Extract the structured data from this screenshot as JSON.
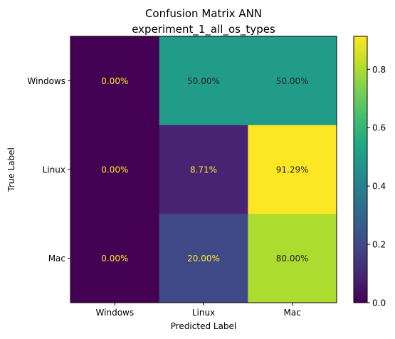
{
  "chart_data": {
    "type": "heatmap",
    "title": "Confusion Matrix ANN",
    "subtitle": "experiment_1_all_os_types",
    "xlabel": "Predicted Label",
    "ylabel": "True Label",
    "row_labels": [
      "Windows",
      "Linux",
      "Mac"
    ],
    "col_labels": [
      "Windows",
      "Linux",
      "Mac"
    ],
    "values": [
      [
        0.0,
        0.5,
        0.5
      ],
      [
        0.0,
        0.0871,
        0.9129
      ],
      [
        0.0,
        0.2,
        0.8
      ]
    ],
    "cell_labels": [
      [
        "0.00%",
        "50.00%",
        "50.00%"
      ],
      [
        "0.00%",
        "8.71%",
        "91.29%"
      ],
      [
        "0.00%",
        "20.00%",
        "80.00%"
      ]
    ],
    "colormap": "viridis",
    "colorbar": {
      "range": [
        0.0,
        0.9129
      ],
      "ticks": [
        0.0,
        0.2,
        0.4,
        0.6,
        0.8
      ],
      "tick_labels": [
        "0.0",
        "0.2",
        "0.4",
        "0.6",
        "0.8"
      ]
    },
    "text_colors": {
      "light": "#fde725",
      "dark": "#222222"
    }
  }
}
